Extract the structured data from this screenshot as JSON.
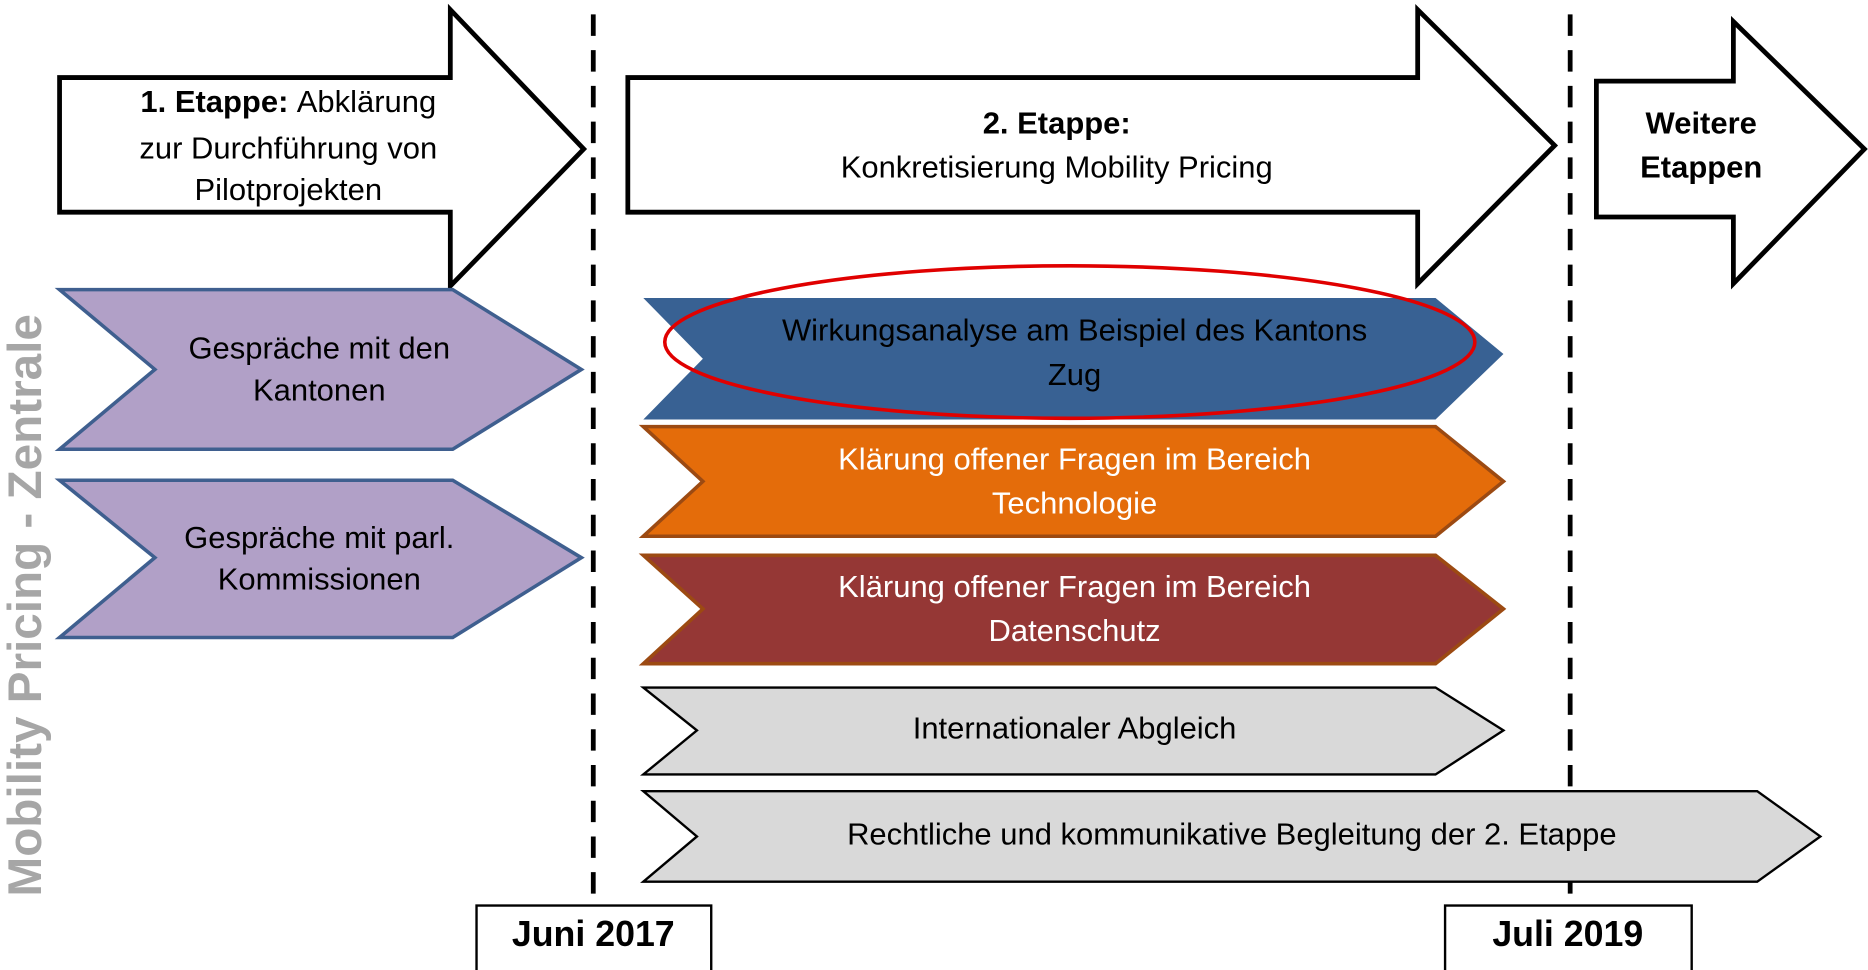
{
  "side_label": "Mobility Pricing - Zentrale",
  "stages": [
    {
      "title": "1. Etappe:",
      "lines": [
        "Abklärung",
        "zur Durchführung von",
        "Pilotprojekten"
      ]
    },
    {
      "title": "2. Etappe:",
      "lines": [
        "Konkretisierung Mobility Pricing"
      ]
    },
    {
      "title": "Weitere",
      "lines": [
        "Etappen"
      ]
    }
  ],
  "stage1_tasks": [
    {
      "lines": [
        "Gespräche mit den",
        "Kantonen"
      ]
    },
    {
      "lines": [
        "Gespräche mit parl.",
        "Kommissionen"
      ]
    }
  ],
  "stage2_tasks": [
    {
      "lines": [
        "Wirkungsanalyse am Beispiel des Kantons",
        "Zug"
      ]
    },
    {
      "lines": [
        "Klärung offener Fragen im Bereich",
        "Technologie"
      ]
    },
    {
      "lines": [
        "Klärung offener Fragen im Bereich",
        "Datenschutz"
      ]
    },
    {
      "lines": [
        "Internationaler Abgleich"
      ]
    },
    {
      "lines": [
        "Rechtliche und kommunikative Begleitung der 2. Etappe"
      ]
    }
  ],
  "milestones": [
    "Juni 2017",
    "Juli 2019"
  ]
}
